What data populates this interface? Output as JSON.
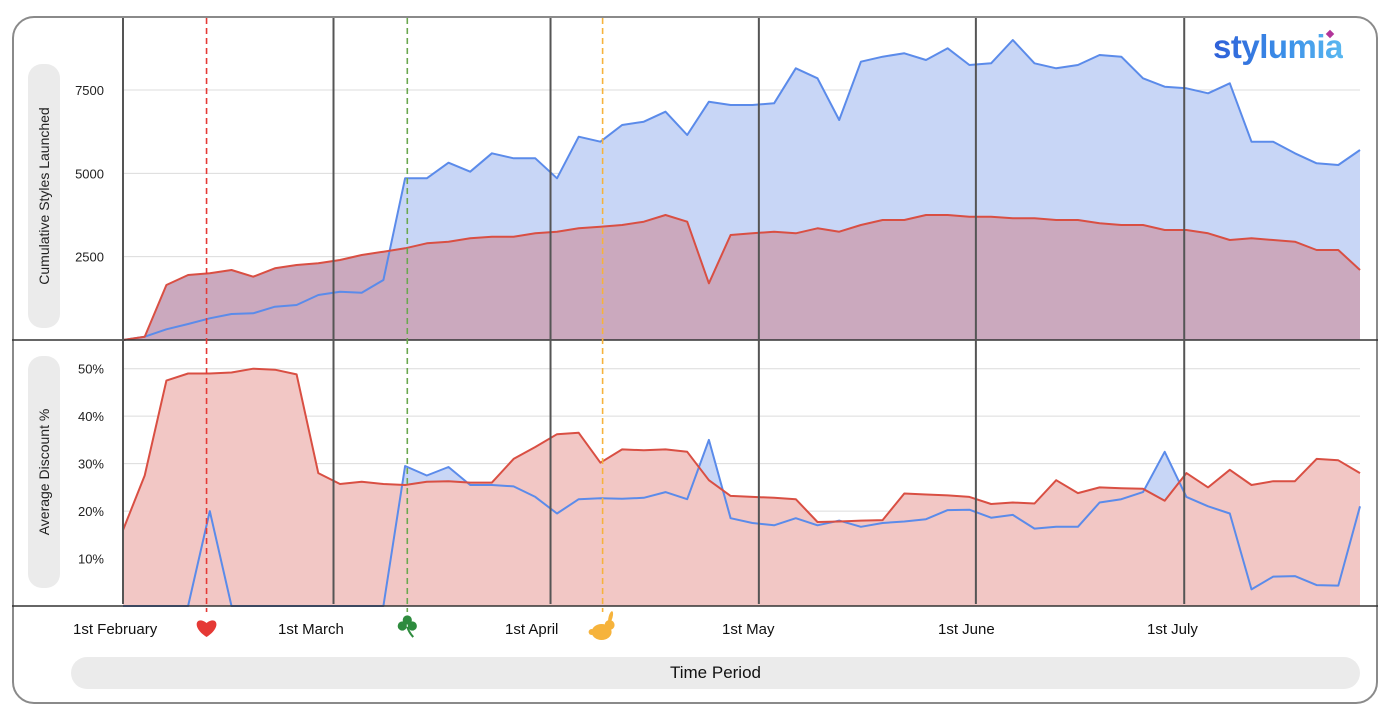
{
  "brand": {
    "logo_text": "stylumia"
  },
  "chart_data": [
    {
      "type": "area",
      "ylabel": "Cumulative Styles Launched",
      "yticks": [
        "2500",
        "5000",
        "7500"
      ],
      "ylim": [
        0,
        9300
      ],
      "grid": true,
      "x_start": "1st February",
      "x_step_days": 3,
      "series": [
        {
          "color": "#5b8bea",
          "fill": "#c8d6f6",
          "values": [
            0,
            100,
            320,
            480,
            650,
            780,
            800,
            1000,
            1050,
            1350,
            1450,
            1420,
            1800,
            4850,
            4850,
            5320,
            5050,
            5600,
            5450,
            5450,
            4850,
            6100,
            5950,
            6450,
            6550,
            6850,
            6150,
            7150,
            7050,
            7050,
            7100,
            8150,
            7850,
            6600,
            8350,
            8500,
            8600,
            8400,
            8750,
            8250,
            8300,
            9000,
            8300,
            8150,
            8250,
            8550,
            8500,
            7850,
            7600,
            7550,
            7400,
            7700,
            5950,
            5950,
            5600,
            5300,
            5250,
            5700
          ]
        },
        {
          "color": "#d94f43",
          "fill": "#cba9be",
          "values": [
            0,
            100,
            1650,
            1950,
            2000,
            2100,
            1900,
            2150,
            2250,
            2300,
            2400,
            2550,
            2650,
            2750,
            2900,
            2950,
            3050,
            3100,
            3100,
            3200,
            3250,
            3350,
            3400,
            3450,
            3550,
            3750,
            3550,
            1700,
            3150,
            3200,
            3250,
            3200,
            3350,
            3250,
            3450,
            3600,
            3600,
            3750,
            3750,
            3700,
            3700,
            3650,
            3650,
            3600,
            3600,
            3500,
            3450,
            3450,
            3300,
            3300,
            3200,
            3000,
            3050,
            3000,
            2950,
            2700,
            2700,
            2100
          ]
        }
      ]
    },
    {
      "type": "area",
      "ylabel": "Average Discount %",
      "yticks": [
        "10%",
        "20%",
        "30%",
        "40%",
        "50%"
      ],
      "ylim": [
        0,
        55
      ],
      "grid": true,
      "series": [
        {
          "color": "#5b8bea",
          "fill": "#c8d6f6",
          "values": [
            0,
            0,
            0,
            0,
            20,
            0,
            0,
            0,
            0,
            0,
            0,
            0,
            0,
            29.5,
            27.5,
            29.3,
            25.5,
            25.5,
            25.2,
            23,
            19.5,
            22.5,
            22.7,
            22.6,
            22.8,
            24,
            22.5,
            35,
            18.5,
            17.5,
            17,
            18.5,
            17,
            18,
            16.7,
            17.5,
            17.8,
            18.3,
            20.2,
            20.3,
            18.6,
            19.2,
            16.3,
            16.7,
            16.7,
            21.8,
            22.5,
            24,
            32.5,
            23,
            21,
            19.5,
            3.5,
            6.2,
            6.3,
            4.4,
            4.3,
            21
          ]
        },
        {
          "color": "#d94f43",
          "fill": "#f2c7c5",
          "values": [
            16,
            27.5,
            47.5,
            49,
            49,
            49.2,
            50,
            49.8,
            48.8,
            28,
            25.7,
            26.2,
            25.7,
            25.5,
            26.2,
            26.3,
            26,
            26,
            31,
            33.5,
            36.2,
            36.5,
            30.2,
            33,
            32.8,
            33,
            32.5,
            26.5,
            23.2,
            23,
            22.8,
            22.5,
            17.7,
            17.8,
            18,
            18.1,
            23.7,
            23.5,
            23.3,
            23,
            21.5,
            21.8,
            21.6,
            26.5,
            23.8,
            25,
            24.8,
            24.7,
            22.2,
            28,
            25,
            28.7,
            25.5,
            26.3,
            26.3,
            31,
            30.7,
            28
          ]
        }
      ]
    }
  ],
  "x_axis": {
    "label": "Time Period",
    "months": [
      "1st February",
      "1st March",
      "1st April",
      "1st May",
      "1st June",
      "1st July"
    ],
    "month_index": [
      0,
      9.7,
      19.7,
      29.3,
      39.3,
      48.9
    ]
  },
  "events": [
    {
      "name": "Valentine's Day",
      "icon": "heart-icon",
      "index": 3.85,
      "color": "#e53935"
    },
    {
      "name": "St. Patrick's Day",
      "icon": "shamrock-icon",
      "index": 13.1,
      "color": "#6aa84f"
    },
    {
      "name": "Easter",
      "icon": "rabbit-icon",
      "index": 22.1,
      "color": "#f6b33c"
    }
  ]
}
